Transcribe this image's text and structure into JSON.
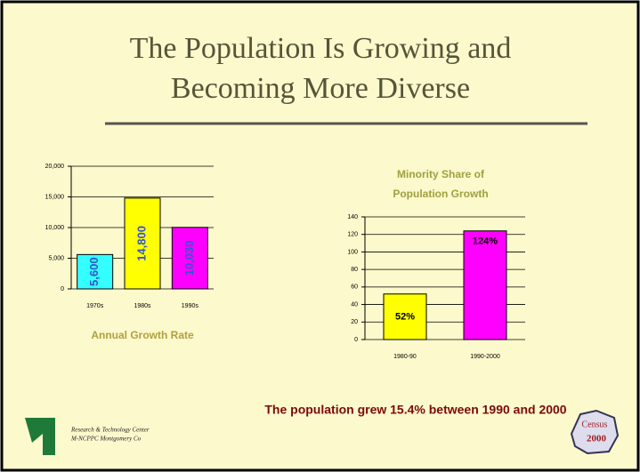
{
  "slide": {
    "title_lines": [
      "The Population Is Growing and",
      "Becoming More Diverse"
    ],
    "footer": "The population grew 15.4% between 1990 and 2000",
    "logo_lines": [
      "Research & Technology Center",
      "M-NCPPC Montgomery Co"
    ],
    "badge_lines": [
      "Census",
      "2000"
    ]
  },
  "chart_data": [
    {
      "type": "bar",
      "x_label": "Annual Growth Rate",
      "categories": [
        "1970s",
        "1980s",
        "1990s"
      ],
      "values": [
        5600,
        14800,
        10030
      ],
      "value_labels": [
        "5,600",
        "14,800",
        "10,030"
      ],
      "colors": [
        "#33ffff",
        "#ffff00",
        "#ff00ff"
      ],
      "label_color": "#3355cc",
      "ylim": [
        0,
        20000
      ],
      "yticks": [
        0,
        {
          "value": 5000,
          "label": "5,000"
        },
        {
          "value": 10000,
          "label": "10,000"
        },
        {
          "value": 15000,
          "label": "15,000"
        },
        {
          "value": 20000,
          "label": "20,000"
        }
      ],
      "grid": true
    },
    {
      "type": "bar",
      "title_lines": [
        "Minority Share of",
        "Population Growth"
      ],
      "categories": [
        "1980-90",
        "1990-2000"
      ],
      "values": [
        52,
        124
      ],
      "value_labels": [
        "52%",
        "124%"
      ],
      "colors": [
        "#ffff00",
        "#ff00ff"
      ],
      "label_color": "#000000",
      "ylim": [
        0,
        140
      ],
      "yticks": [
        0,
        20,
        40,
        60,
        80,
        100,
        120,
        140
      ],
      "grid": true
    }
  ]
}
